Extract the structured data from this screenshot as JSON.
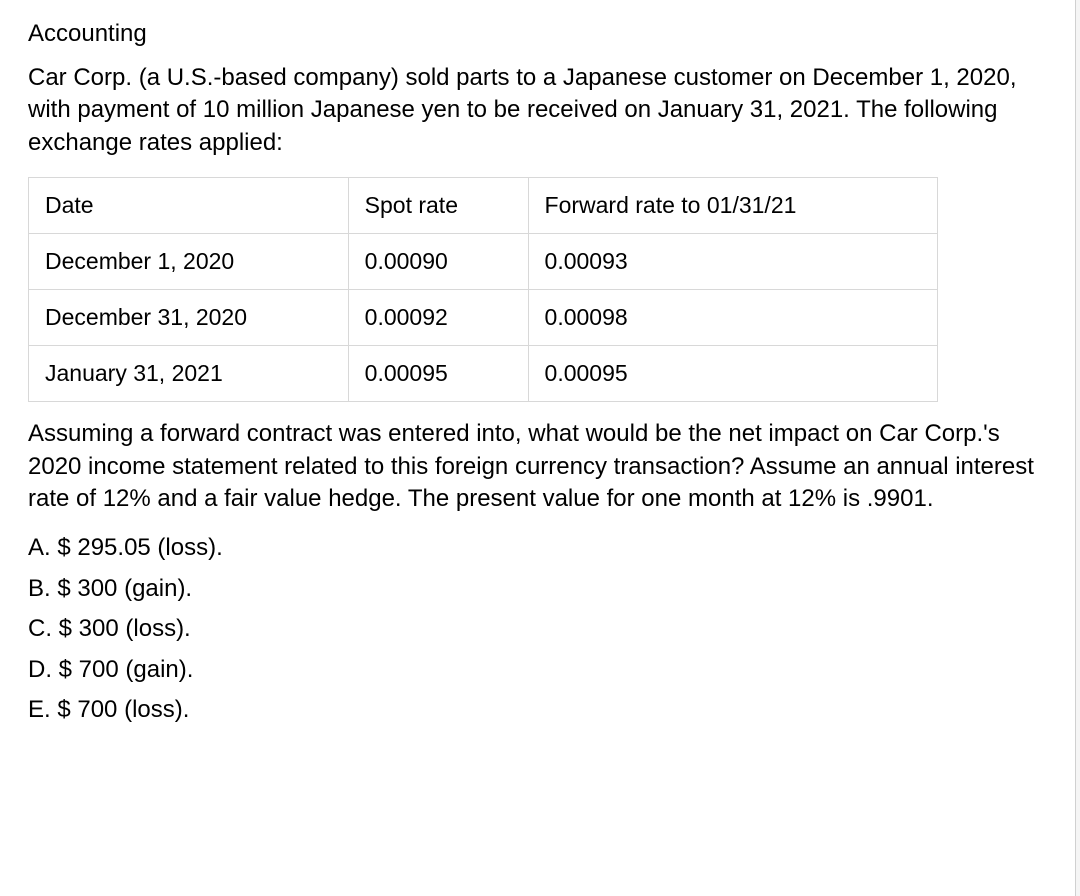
{
  "subject": "Accounting",
  "problem_statement": "Car Corp. (a U.S.-based company) sold parts to a Japanese customer on December 1, 2020, with payment of 10 million Japanese yen to be received on January 31, 2021. The following exchange rates applied:",
  "table": {
    "headers": {
      "date": "Date",
      "spot": "Spot rate",
      "forward": "Forward rate to 01/31/21"
    },
    "rows": [
      {
        "date": "December 1, 2020",
        "spot": "0.00090",
        "forward": "0.00093"
      },
      {
        "date": "December 31, 2020",
        "spot": "0.00092",
        "forward": "0.00098"
      },
      {
        "date": "January 31, 2021",
        "spot": "0.00095",
        "forward": "0.00095"
      }
    ],
    "border_color": "#d8d8d8",
    "column_widths": {
      "date": 320,
      "spot": 180,
      "forward": 410
    },
    "total_width": 910,
    "cell_fontsize": 23
  },
  "question": "Assuming a forward contract was entered into, what would be the net impact on Car Corp.'s 2020 income statement related to this foreign currency transaction? Assume an annual interest rate of 12% and a fair value hedge. The present value for one month at 12% is .9901.",
  "answers": {
    "a": "A. $ 295.05 (loss).",
    "b": "B. $ 300 (gain).",
    "c": "C. $ 300 (loss).",
    "d": "D. $ 700 (gain).",
    "e": "E. $ 700 (loss)."
  },
  "styling": {
    "background_color": "#ffffff",
    "text_color": "#000000",
    "body_fontsize": 24,
    "font_family": "Arial"
  }
}
